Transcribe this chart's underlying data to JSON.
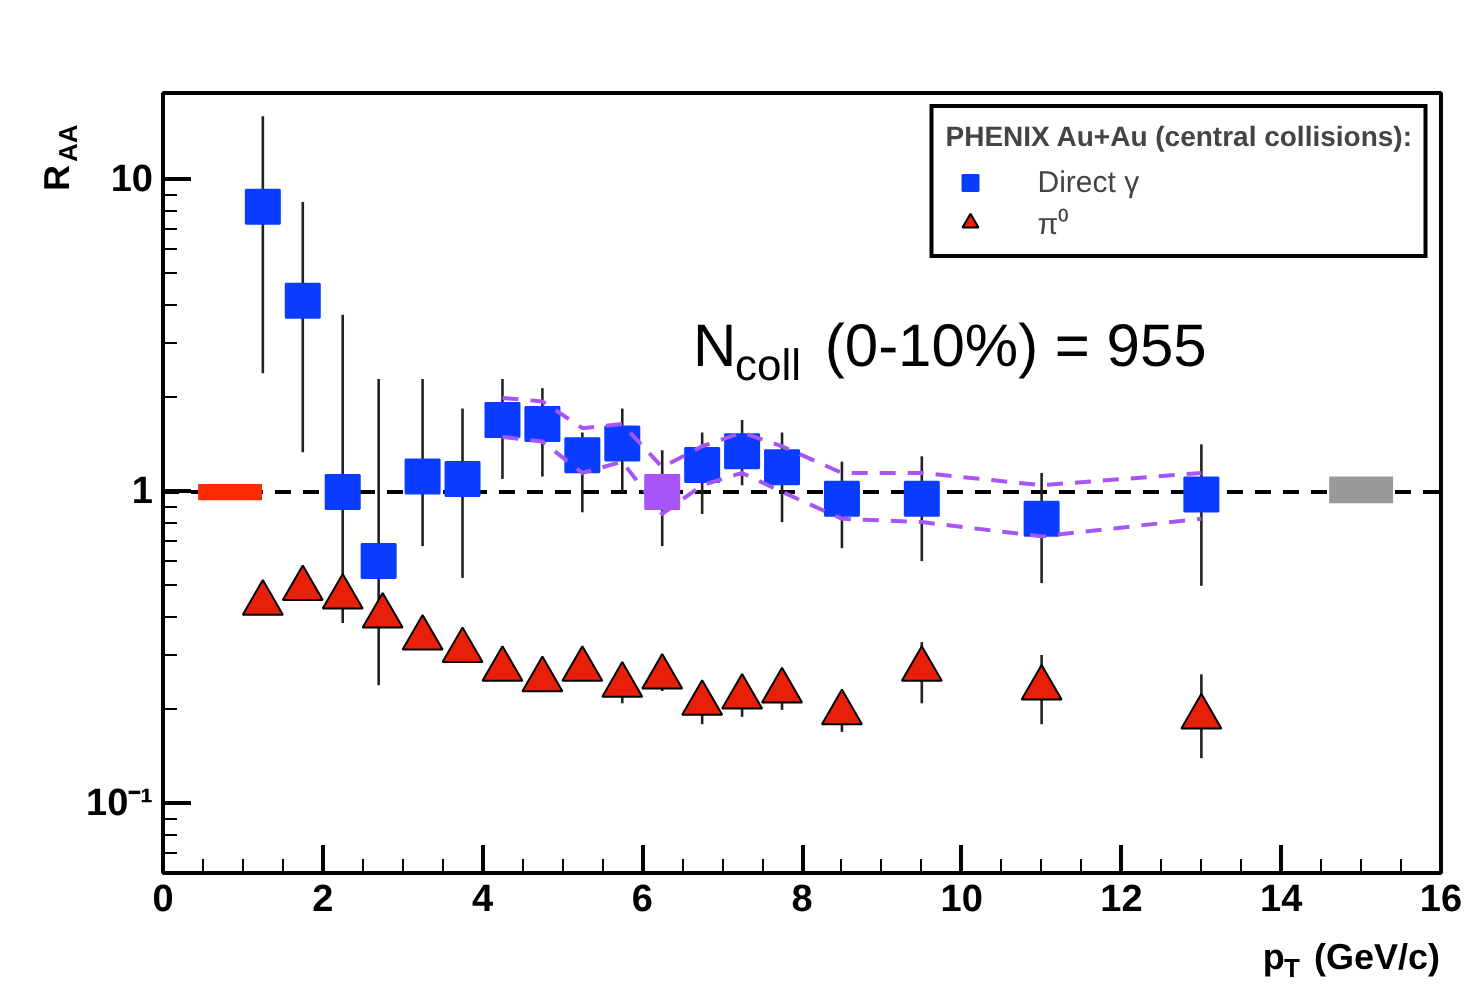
{
  "chart_data": {
    "type": "scatter",
    "xlabel": "p$_{T}$ (GeV/c)",
    "ylabel": "R$_{AA}$",
    "legend_title": "PHENIX Au+Au (central collisions):",
    "annotations": [
      "N$_{coll}$ (0-10%) = 955"
    ],
    "xlim": [
      0,
      16
    ],
    "xticks": [
      0,
      2,
      4,
      6,
      8,
      10,
      12,
      14,
      16
    ],
    "ylim": [
      0.06,
      19
    ],
    "yticks": [
      {
        "value": 0.1,
        "label": "10⁻¹"
      },
      1,
      10
    ],
    "log": "y",
    "legend": "top right",
    "ref_lines": [
      {
        "axis": "y",
        "value": 1,
        "color": "#000000",
        "line_style": "dashed"
      }
    ],
    "series": [
      {
        "name": "Direct γ",
        "marker": "square",
        "color": "#0a3cff",
        "x": [
          1.25,
          1.75,
          2.25,
          2.7,
          3.25,
          3.75,
          4.25,
          4.75,
          5.25,
          5.75,
          6.25,
          6.75,
          7.25,
          7.75,
          8.5,
          9.5,
          11,
          13
        ],
        "values": [
          8.2,
          4.1,
          1.0,
          0.6,
          1.12,
          1.1,
          1.7,
          1.65,
          1.31,
          1.43,
          1.0,
          1.22,
          1.35,
          1.2,
          0.95,
          0.95,
          0.82,
          0.98
        ],
        "colors": [
          "#0a3cff",
          "#0a3cff",
          "#0a3cff",
          "#0a3cff",
          "#0a3cff",
          "#0a3cff",
          "#0a3cff",
          "#0a3cff",
          "#0a3cff",
          "#0a3cff",
          "#a855f7",
          "#0a3cff",
          "#0a3cff",
          "#0a3cff",
          "#0a3cff",
          "#0a3cff",
          "#0a3cff",
          "#0a3cff"
        ],
        "errors": [
          [
            2.4,
            16
          ],
          [
            1.34,
            8.5
          ],
          [
            0.38,
            3.7
          ],
          [
            0.24,
            2.3
          ],
          [
            0.67,
            2.3
          ],
          [
            0.53,
            1.85
          ],
          [
            1.1,
            2.3
          ],
          [
            1.12,
            2.15
          ],
          [
            0.86,
            1.55
          ],
          [
            1.0,
            1.85
          ],
          [
            0.67,
            1.36
          ],
          [
            0.85,
            1.55
          ],
          [
            1.05,
            1.7
          ],
          [
            0.8,
            1.55
          ],
          [
            0.66,
            1.25
          ],
          [
            0.6,
            1.3
          ],
          [
            0.51,
            1.15
          ],
          [
            0.5,
            1.42
          ]
        ]
      },
      {
        "type": "line",
        "line_style": "dashed",
        "color": "#a855f7",
        "x": [
          4.25,
          4.75,
          5.25,
          5.75,
          6.25,
          6.75,
          7.25,
          7.75,
          8.5,
          9.5,
          11,
          13
        ],
        "values": [
          2.0,
          1.95,
          1.6,
          1.65,
          1.2,
          1.4,
          1.55,
          1.4,
          1.15,
          1.15,
          1.05,
          1.15
        ]
      },
      {
        "type": "line",
        "line_style": "dashed",
        "color": "#a855f7",
        "x": [
          4.25,
          4.75,
          5.25,
          5.75,
          6.25,
          6.75,
          7.25,
          7.75,
          8.5,
          9.5,
          11,
          13
        ],
        "values": [
          1.5,
          1.45,
          1.15,
          1.25,
          0.85,
          1.05,
          1.15,
          1.0,
          0.82,
          0.8,
          0.72,
          0.82
        ]
      },
      {
        "name": "π⁰",
        "marker": "triangle",
        "color": "#e8200a",
        "x": [
          1.25,
          1.75,
          2.25,
          2.75,
          3.25,
          3.75,
          4.25,
          4.75,
          5.25,
          5.75,
          6.25,
          6.75,
          7.25,
          7.75,
          8.5,
          9.5,
          11,
          13
        ],
        "values": [
          0.44,
          0.49,
          0.46,
          0.4,
          0.34,
          0.31,
          0.27,
          0.25,
          0.27,
          0.24,
          0.255,
          0.21,
          0.22,
          0.23,
          0.196,
          0.27,
          0.235,
          0.19
        ],
        "errors": [
          [
            0.41,
            0.48
          ],
          [
            0.46,
            0.53
          ],
          [
            0.43,
            0.5
          ],
          [
            0.37,
            0.44
          ],
          [
            0.32,
            0.37
          ],
          [
            0.29,
            0.33
          ],
          [
            0.25,
            0.29
          ],
          [
            0.23,
            0.27
          ],
          [
            0.25,
            0.29
          ],
          [
            0.21,
            0.27
          ],
          [
            0.23,
            0.28
          ],
          [
            0.18,
            0.24
          ],
          [
            0.19,
            0.25
          ],
          [
            0.2,
            0.26
          ],
          [
            0.17,
            0.23
          ],
          [
            0.21,
            0.33
          ],
          [
            0.18,
            0.3
          ],
          [
            0.14,
            0.26
          ]
        ]
      },
      {
        "type": "bar",
        "color": "#ff2a00",
        "x": [
          0.84
        ],
        "base": [
          0.94
        ],
        "values": [
          0.12
        ]
      },
      {
        "type": "bar",
        "color": "#999999",
        "x": [
          15.0
        ],
        "base": [
          0.92
        ],
        "values": [
          0.2
        ]
      }
    ]
  }
}
